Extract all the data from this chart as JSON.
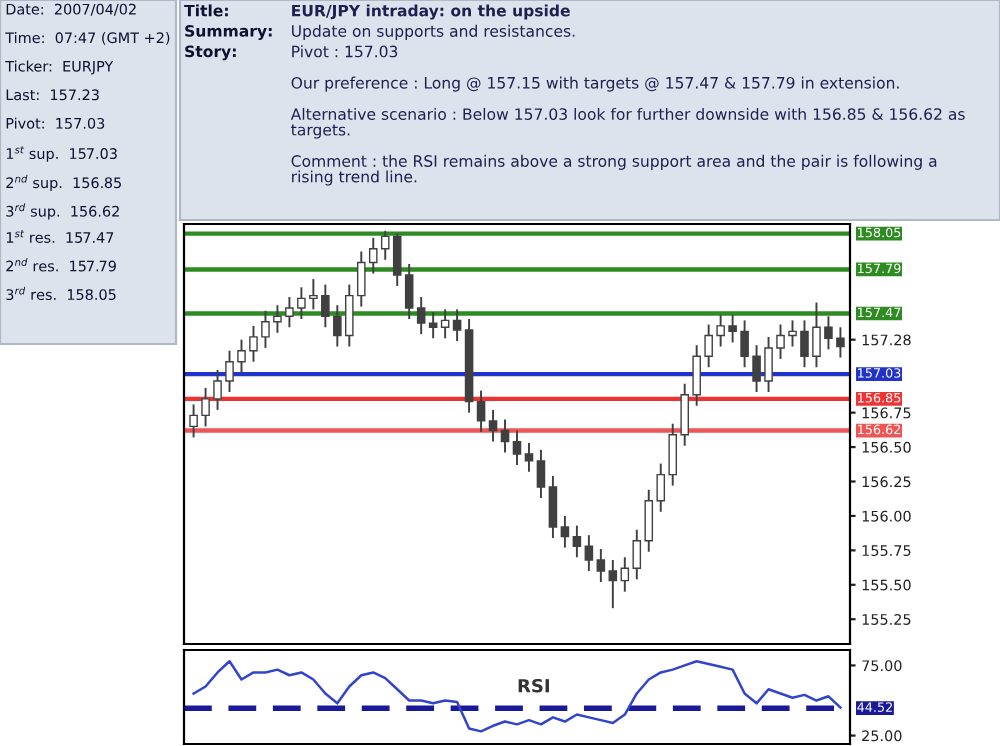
{
  "chart_data": [
    {
      "type": "other",
      "annotations": [
        "Date:",
        "2007/04/02",
        "Time:",
        "07:47\n(GMT +2)",
        "Ticker:",
        "EURJPY",
        "Last:",
        "157.23",
        "Pivot:",
        "157.03",
        "1$^{st}$ sup.",
        "157.03",
        "2$^{nd}$ sup.",
        "156.85",
        "3$^{rd}$ sup.",
        "156.62",
        "1$^{st}$ res.",
        "157.47",
        "2$^{nd}$ res.",
        "157.79",
        "3$^{rd}$ res.",
        "158.05"
      ]
    },
    {
      "type": "other",
      "annotations": [
        "Title:",
        "EUR/JPY intraday: on the upside",
        "Summary:",
        "Update on supports and resistances.",
        "Story:",
        "Pivot : 157.03\n\nOur preference : Long @ 157.15 with targets @ 157.47 & 157.79 in extension.\n\nAlternative scenario : Below 157.03 look for further downside with 156.85 & 156.62 as\ntargets.\n\nComment : the RSI remains above a strong support area and the pair is following a\nrising trend line."
      ]
    },
    {
      "type": "candlestick",
      "color": "#404040",
      "categories": [
        null,
        null,
        null,
        null,
        null,
        null,
        null,
        null,
        null,
        null,
        null,
        null,
        null,
        null,
        null,
        null,
        null,
        null,
        null,
        null,
        null,
        null,
        null,
        null,
        null,
        null,
        null,
        null,
        null,
        null,
        null,
        null,
        null,
        null,
        null,
        null,
        null,
        null,
        null,
        null,
        null,
        null,
        null,
        null,
        null,
        null,
        null,
        null,
        null,
        null,
        null,
        null,
        null,
        null,
        null
      ],
      "ohlc": [
        [
          156.65,
          156.81,
          156.57,
          156.73
        ],
        [
          156.73,
          156.93,
          156.65,
          156.85
        ],
        [
          156.85,
          157.06,
          156.77,
          156.98
        ],
        [
          156.98,
          157.2,
          156.9,
          157.12
        ],
        [
          157.12,
          157.28,
          157.04,
          157.2
        ],
        [
          157.2,
          157.38,
          157.12,
          157.3
        ],
        [
          157.3,
          157.49,
          157.22,
          157.41
        ],
        [
          157.41,
          157.53,
          157.33,
          157.45
        ],
        [
          157.45,
          157.59,
          157.37,
          157.51
        ],
        [
          157.51,
          157.66,
          157.43,
          157.58
        ],
        [
          157.58,
          157.72,
          157.5,
          157.6
        ],
        [
          157.6,
          157.68,
          157.37,
          157.45
        ],
        [
          157.45,
          157.53,
          157.23,
          157.31
        ],
        [
          157.31,
          157.68,
          157.23,
          157.6
        ],
        [
          157.6,
          157.92,
          157.52,
          157.84
        ],
        [
          157.84,
          158.02,
          157.76,
          157.94
        ],
        [
          157.94,
          158.07,
          157.86,
          158.03
        ],
        [
          158.03,
          158.05,
          157.67,
          157.75
        ],
        [
          157.75,
          157.83,
          157.43,
          157.51
        ],
        [
          157.51,
          157.59,
          157.32,
          157.4
        ],
        [
          157.4,
          157.48,
          157.29,
          157.37
        ],
        [
          157.37,
          157.5,
          157.29,
          157.42
        ],
        [
          157.42,
          157.5,
          157.27,
          157.35
        ],
        [
          157.35,
          157.43,
          156.75,
          156.83
        ],
        [
          156.83,
          156.91,
          156.61,
          156.69
        ],
        [
          156.69,
          156.77,
          156.54,
          156.62
        ],
        [
          156.62,
          156.7,
          156.46,
          156.54
        ],
        [
          156.54,
          156.62,
          156.37,
          156.45
        ],
        [
          156.45,
          156.53,
          156.32,
          156.4
        ],
        [
          156.4,
          156.48,
          156.13,
          156.21
        ],
        [
          156.21,
          156.29,
          155.84,
          155.92
        ],
        [
          155.92,
          156.0,
          155.77,
          155.85
        ],
        [
          155.85,
          155.93,
          155.7,
          155.78
        ],
        [
          155.78,
          155.86,
          155.6,
          155.68
        ],
        [
          155.68,
          155.76,
          155.52,
          155.6
        ],
        [
          155.6,
          155.68,
          155.33,
          155.53
        ],
        [
          155.53,
          155.7,
          155.45,
          155.62
        ],
        [
          155.62,
          155.9,
          155.54,
          155.82
        ],
        [
          155.82,
          156.19,
          155.74,
          156.11
        ],
        [
          156.11,
          156.38,
          156.03,
          156.3
        ],
        [
          156.3,
          156.67,
          156.22,
          156.59
        ],
        [
          156.59,
          156.96,
          156.51,
          156.88
        ],
        [
          156.88,
          157.24,
          156.8,
          157.16
        ],
        [
          157.16,
          157.39,
          157.08,
          157.31
        ],
        [
          157.31,
          157.46,
          157.23,
          157.38
        ],
        [
          157.38,
          157.46,
          157.26,
          157.34
        ],
        [
          157.34,
          157.42,
          157.08,
          157.16
        ],
        [
          157.16,
          157.24,
          156.9,
          156.98
        ],
        [
          156.98,
          157.3,
          156.9,
          157.22
        ],
        [
          157.22,
          157.39,
          157.14,
          157.31
        ],
        [
          157.31,
          157.42,
          157.23,
          157.34
        ],
        [
          157.34,
          157.42,
          157.08,
          157.16
        ],
        [
          157.16,
          157.55,
          157.08,
          157.37
        ],
        [
          157.37,
          157.45,
          157.21,
          157.29
        ],
        [
          157.29,
          157.37,
          157.15,
          157.23
        ]
      ],
      "ylim": [
        155.07,
        158.12
      ],
      "yticks": [
        155.25,
        {
          "value": 155.5,
          "label": "155.50"
        },
        155.75,
        {
          "value": 156.0,
          "label": "156.00"
        },
        156.25,
        {
          "value": 156.5,
          "label": "156.50"
        },
        156.75,
        157.28
      ],
      "ref_lines": [
        {
          "axis": "y",
          "value": 158.05,
          "label": "158.05",
          "color": "#2e8b22"
        },
        {
          "axis": "y",
          "value": 157.79,
          "label": "157.79",
          "color": "#2e8b22"
        },
        {
          "axis": "y",
          "value": 157.47,
          "label": "157.47",
          "color": "#2e8b22"
        },
        {
          "axis": "y",
          "value": 157.03,
          "label": "157.03",
          "color": "#2233cc"
        },
        {
          "axis": "y",
          "value": 156.85,
          "label": "156.85",
          "color": "#ee3333"
        },
        {
          "axis": "y",
          "value": 156.62,
          "label": "156.62",
          "color": "#ee5555"
        }
      ],
      "grid": false,
      "tick_labels": "y"
    },
    {
      "type": "line",
      "categories": [
        null,
        null,
        null,
        null,
        null,
        null,
        null,
        null,
        null,
        null,
        null,
        null,
        null,
        null,
        null,
        null,
        null,
        null,
        null,
        null,
        null,
        null,
        null,
        null,
        null,
        null,
        null,
        null,
        null,
        null,
        null,
        null,
        null,
        null,
        null,
        null,
        null,
        null,
        null,
        null,
        null,
        null,
        null,
        null,
        null,
        null,
        null,
        null,
        null,
        null,
        null,
        null,
        null,
        null,
        null
      ],
      "series": [
        {
          "color": "#3344cc",
          "values": [
            55,
            60,
            70,
            78,
            65,
            70,
            70,
            72,
            68,
            70,
            65,
            55,
            48,
            60,
            68,
            70,
            66,
            58,
            50,
            50,
            48,
            50,
            49,
            30,
            28,
            32,
            35,
            33,
            36,
            33,
            38,
            35,
            40,
            38,
            36,
            34,
            40,
            55,
            65,
            70,
            72,
            75,
            78,
            76,
            74,
            72,
            55,
            48,
            58,
            55,
            52,
            54,
            50,
            53,
            45
          ]
        }
      ],
      "ylim": [
        19,
        86
      ],
      "yticks": [
        {
          "value": 25,
          "label": "25.00"
        },
        {
          "value": 75,
          "label": "75.00"
        }
      ],
      "ref_lines": [
        {
          "axis": "y",
          "value": 44.52,
          "label": "44.52",
          "color": "#1a1a99",
          "line_style": "dashed"
        }
      ],
      "annotations": [
        "RSI"
      ],
      "grid": false,
      "tick_labels": "y"
    }
  ]
}
